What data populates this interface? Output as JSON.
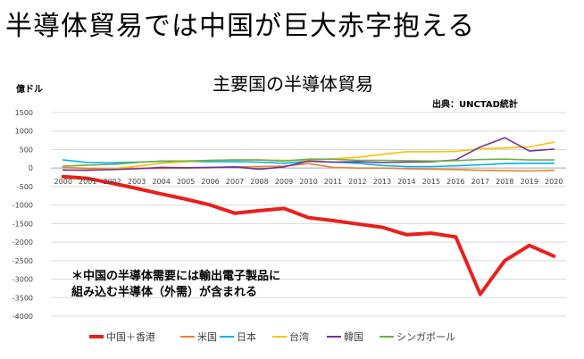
{
  "headline": "半導体貿易では中国が巨大赤字抱える",
  "chart_data": {
    "type": "line",
    "title": "主要国の半導体貿易",
    "unit_label": "億ドル",
    "source": "出典：UNCTAD統計",
    "annotation": [
      "＊中国の半導体需要には輸出電子製品に",
      "組み込む半導体（外需）が含まれる"
    ],
    "xlabel": "",
    "ylabel": "",
    "ylim": [
      -4000,
      1500
    ],
    "y_ticks": [
      1500,
      1000,
      500,
      0,
      -500,
      -1000,
      -1500,
      -2000,
      -2500,
      -3000,
      -3500,
      -4000
    ],
    "x": [
      "2000",
      "2001",
      "2002",
      "2003",
      "2004",
      "2005",
      "2006",
      "2007",
      "2008",
      "2009",
      "2010",
      "2011",
      "2012",
      "2013",
      "2014",
      "2015",
      "2016",
      "2017",
      "2018",
      "2019",
      "2020"
    ],
    "grid": true,
    "legend_position": "bottom",
    "series": [
      {
        "name": "中国＋香港",
        "color": "#e8201c",
        "width": 4,
        "values": [
          -230,
          -280,
          -410,
          -550,
          -700,
          -840,
          -1000,
          -1220,
          -1150,
          -1090,
          -1340,
          -1420,
          -1510,
          -1600,
          -1800,
          -1760,
          -1860,
          -3410,
          -2500,
          -2090,
          -2380
        ]
      },
      {
        "name": "米国",
        "color": "#ed7d31",
        "width": 1.6,
        "values": [
          20,
          -10,
          -20,
          -10,
          -10,
          0,
          10,
          30,
          40,
          50,
          120,
          20,
          0,
          0,
          -20,
          -30,
          -40,
          -60,
          -70,
          -80,
          -60
        ]
      },
      {
        "name": "日本",
        "color": "#00b0f0",
        "width": 1.6,
        "values": [
          220,
          150,
          140,
          160,
          180,
          180,
          170,
          170,
          160,
          130,
          180,
          160,
          130,
          70,
          40,
          40,
          60,
          90,
          120,
          130,
          130
        ]
      },
      {
        "name": "台湾",
        "color": "#ffc000",
        "width": 1.6,
        "values": [
          -60,
          -50,
          -20,
          50,
          130,
          170,
          210,
          220,
          220,
          210,
          210,
          250,
          290,
          370,
          440,
          440,
          450,
          520,
          540,
          570,
          700
        ]
      },
      {
        "name": "韓国",
        "color": "#7030a0",
        "width": 1.6,
        "values": [
          -50,
          -60,
          -40,
          -20,
          20,
          10,
          20,
          30,
          -30,
          30,
          190,
          160,
          170,
          150,
          160,
          170,
          220,
          570,
          820,
          460,
          510
        ]
      },
      {
        "name": "シンガポール",
        "color": "#70ad47",
        "width": 1.6,
        "values": [
          50,
          80,
          100,
          150,
          190,
          190,
          210,
          220,
          220,
          190,
          240,
          240,
          210,
          210,
          200,
          190,
          200,
          230,
          240,
          220,
          220
        ]
      }
    ]
  }
}
